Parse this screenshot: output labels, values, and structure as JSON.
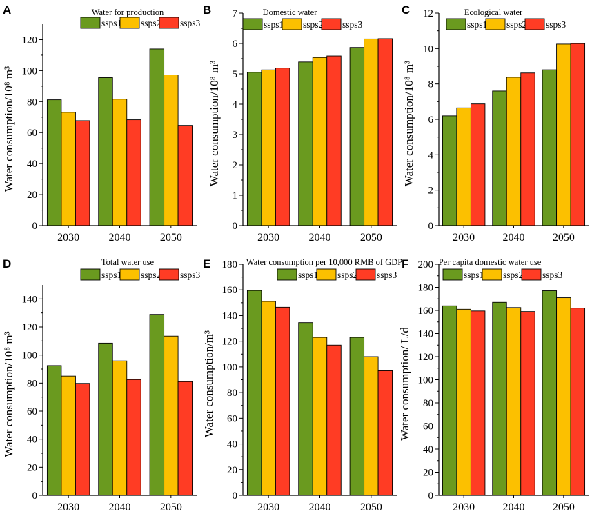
{
  "figure": {
    "legend_labels": [
      "ssps1",
      "ssps2",
      "ssps3"
    ],
    "series_colors": [
      "#6a9a1f",
      "#fcc000",
      "#ff3c24"
    ]
  },
  "chart_data": [
    {
      "panel": "A",
      "type": "bar",
      "title": "Water for production",
      "ylabel": "Water consumption/10⁸ m³",
      "categories": [
        "2030",
        "2040",
        "2050"
      ],
      "ylim": [
        0,
        130
      ],
      "yticks": [
        0,
        20,
        40,
        60,
        80,
        100,
        120
      ],
      "series": [
        {
          "name": "ssps1",
          "values": [
            81.2,
            95.5,
            114
          ]
        },
        {
          "name": "ssps2",
          "values": [
            73.1,
            81.6,
            97.3
          ]
        },
        {
          "name": "ssps3",
          "values": [
            67.7,
            68.3,
            64.7
          ]
        }
      ]
    },
    {
      "panel": "B",
      "type": "bar",
      "title": "Domestic water",
      "ylabel": "Water consumption/10⁸ m³",
      "categories": [
        "2030",
        "2040",
        "2050"
      ],
      "ylim": [
        0,
        7
      ],
      "yticks": [
        0,
        1,
        2,
        3,
        4,
        5,
        6,
        7
      ],
      "series": [
        {
          "name": "ssps1",
          "values": [
            5.05,
            5.39,
            5.87
          ]
        },
        {
          "name": "ssps2",
          "values": [
            5.13,
            5.54,
            6.15
          ]
        },
        {
          "name": "ssps3",
          "values": [
            5.19,
            5.59,
            6.16
          ]
        }
      ]
    },
    {
      "panel": "C",
      "type": "bar",
      "title": "Ecological water",
      "ylabel": "Water consumption/10⁸ m³",
      "categories": [
        "2030",
        "2040",
        "2050"
      ],
      "ylim": [
        0,
        12
      ],
      "yticks": [
        0,
        2,
        4,
        6,
        8,
        10,
        12
      ],
      "series": [
        {
          "name": "ssps1",
          "values": [
            6.2,
            7.6,
            8.8
          ]
        },
        {
          "name": "ssps2",
          "values": [
            6.65,
            8.38,
            10.25
          ]
        },
        {
          "name": "ssps3",
          "values": [
            6.87,
            8.62,
            10.28
          ]
        }
      ]
    },
    {
      "panel": "D",
      "type": "bar",
      "title": "Total water use",
      "ylabel": "Water consumption/10⁸ m³",
      "categories": [
        "2030",
        "2040",
        "2050"
      ],
      "ylim": [
        0,
        150
      ],
      "yticks": [
        0,
        20,
        40,
        60,
        80,
        100,
        120,
        140
      ],
      "series": [
        {
          "name": "ssps1",
          "values": [
            92.5,
            108.5,
            129
          ]
        },
        {
          "name": "ssps2",
          "values": [
            85,
            95.8,
            113.5
          ]
        },
        {
          "name": "ssps3",
          "values": [
            79.8,
            82.5,
            81
          ]
        }
      ]
    },
    {
      "panel": "E",
      "type": "bar",
      "title": "Water consumption per 10,000 RMB of GDP",
      "ylabel": "Water consumption/m³",
      "categories": [
        "2030",
        "2040",
        "2050"
      ],
      "ylim": [
        0,
        180
      ],
      "yticks": [
        0,
        20,
        40,
        60,
        80,
        100,
        120,
        140,
        160,
        180
      ],
      "series": [
        {
          "name": "ssps1",
          "values": [
            159.5,
            134.5,
            123
          ]
        },
        {
          "name": "ssps2",
          "values": [
            151,
            123,
            108
          ]
        },
        {
          "name": "ssps3",
          "values": [
            146.5,
            117,
            97
          ]
        }
      ]
    },
    {
      "panel": "F",
      "type": "bar",
      "title": "Per capita domestic water use",
      "ylabel": "Water consumption/ L/d",
      "categories": [
        "2030",
        "2040",
        "2050"
      ],
      "ylim": [
        0,
        200
      ],
      "yticks": [
        0,
        20,
        40,
        60,
        80,
        100,
        120,
        140,
        160,
        180,
        200
      ],
      "series": [
        {
          "name": "ssps1",
          "values": [
            164,
            167,
            177
          ]
        },
        {
          "name": "ssps2",
          "values": [
            161,
            162.5,
            171
          ]
        },
        {
          "name": "ssps3",
          "values": [
            159.5,
            159,
            162
          ]
        }
      ]
    }
  ]
}
